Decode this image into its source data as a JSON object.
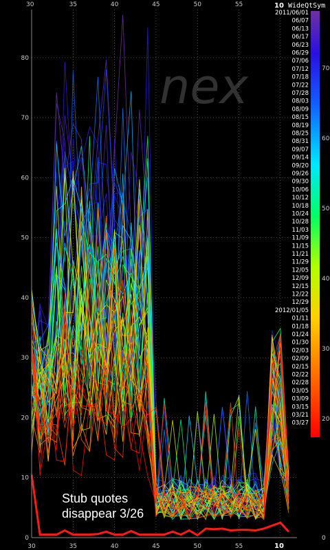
{
  "chart_data": {
    "type": "line",
    "symbol_title": "WideQtSym",
    "watermark": "nex",
    "annotation_lines": [
      "Stub quotes",
      "disappear 3/26"
    ],
    "xlim": [
      30,
      62
    ],
    "ylim": [
      0,
      88
    ],
    "x_ticks": [
      30,
      35,
      40,
      45,
      50,
      55,
      10
    ],
    "y_ticks": [
      0,
      10,
      20,
      30,
      40,
      50,
      60,
      70,
      80
    ],
    "top_left_label": "30",
    "top_bold_label": "10",
    "bottom_bold_label": "10",
    "colorbar_ticks": [
      20,
      30,
      40,
      50,
      60,
      70
    ],
    "colorbar_bottom_label": "0",
    "legend_dates": [
      "2011/06/01",
      "06/07",
      "06/13",
      "06/17",
      "06/23",
      "06/29",
      "07/06",
      "07/12",
      "07/18",
      "07/22",
      "07/28",
      "08/03",
      "08/09",
      "08/15",
      "08/19",
      "08/25",
      "08/31",
      "09/07",
      "09/14",
      "09/20",
      "09/26",
      "09/30",
      "10/06",
      "10/12",
      "10/18",
      "10/24",
      "10/28",
      "11/03",
      "11/09",
      "11/15",
      "11/21",
      "11/29",
      "12/05",
      "12/09",
      "12/15",
      "12/22",
      "12/29",
      "2012/01/05",
      "01/11",
      "01/18",
      "01/24",
      "01/30",
      "02/03",
      "02/09",
      "02/15",
      "02/22",
      "02/28",
      "03/05",
      "03/09",
      "03/15",
      "03/21",
      "03/27"
    ],
    "highlight_series": {
      "name": "03/27",
      "x": [
        30,
        31,
        32,
        33,
        34,
        35,
        36,
        37,
        38,
        39,
        40,
        41,
        42,
        43,
        44,
        45,
        46,
        47,
        48,
        49,
        50,
        51,
        52,
        53,
        54,
        55,
        56,
        57,
        58,
        59,
        60,
        61
      ],
      "values": [
        10.5,
        0.5,
        0.5,
        0.5,
        1.2,
        0.5,
        0.5,
        0.5,
        0.6,
        1.0,
        0.5,
        0.5,
        1.1,
        0.5,
        0.5,
        0.5,
        0.5,
        1.0,
        0.5,
        1.2,
        0.4,
        1.5,
        1.4,
        1.5,
        1.2,
        1.3,
        1.3,
        1.2,
        1.5,
        2.0,
        2.5,
        1.0
      ]
    },
    "colors": {
      "background": "#000000",
      "highlight": "#ff1a1a"
    }
  }
}
